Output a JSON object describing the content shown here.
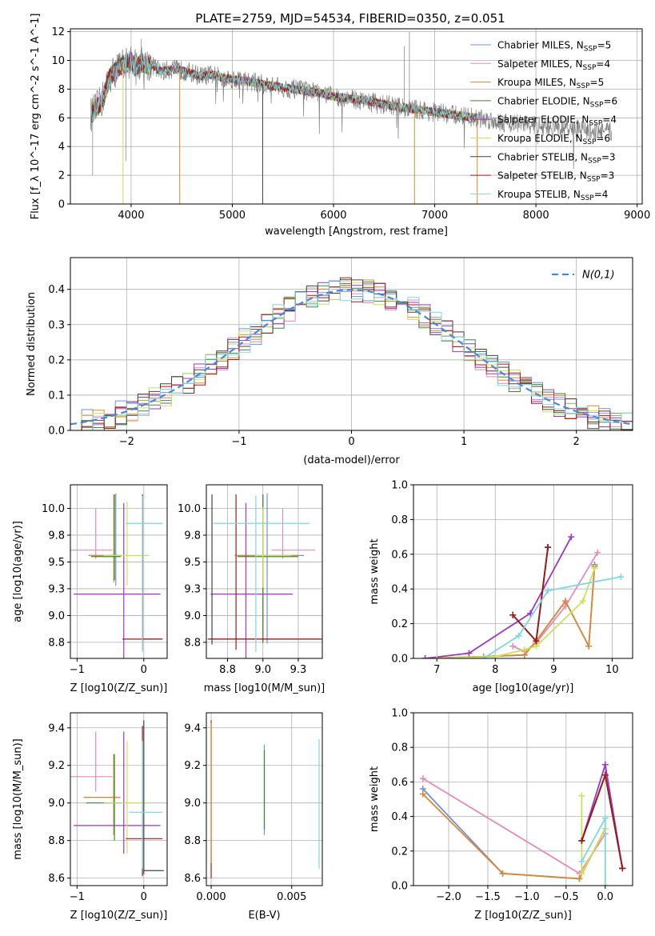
{
  "title": "PLATE=2759, MJD=54534, FIBERID=0350, z=0.051",
  "models": [
    {
      "name": "Chabrier MILES",
      "nssp": "5",
      "color": "#6f8fe0"
    },
    {
      "name": "Salpeter MILES",
      "nssp": "4",
      "color": "#e889b8"
    },
    {
      "name": "Kroupa MILES",
      "nssp": "5",
      "color": "#d98a2e"
    },
    {
      "name": "Chabrier ELODIE",
      "nssp": "6",
      "color": "#3a8a3a"
    },
    {
      "name": "Salpeter ELODIE",
      "nssp": "4",
      "color": "#9b38c0"
    },
    {
      "name": "Kroupa ELODIE",
      "nssp": "6",
      "color": "#c8e25a"
    },
    {
      "name": "Chabrier STELIB",
      "nssp": "3",
      "color": "#444444"
    },
    {
      "name": "Salpeter STELIB",
      "nssp": "3",
      "color": "#a01818"
    },
    {
      "name": "Kroupa STELIB",
      "nssp": "4",
      "color": "#7fd6df"
    }
  ],
  "chart_data": [
    {
      "type": "line",
      "title": "PLATE=2759, MJD=54534, FIBERID=0350, z=0.051",
      "xlabel": "wavelength [Angstrom, rest frame]",
      "ylabel": "Flux [f_λ 10^-17 erg cm^-2 s^-1 A^-1]",
      "xlim": [
        3400,
        9050
      ],
      "ylim": [
        0,
        12.2
      ],
      "xticks": [
        4000,
        5000,
        6000,
        7000,
        8000,
        9000
      ],
      "yticks": [
        0,
        2,
        4,
        6,
        8,
        10,
        12
      ],
      "data_color": "#808080",
      "data_points": [
        [
          3600,
          6.2
        ],
        [
          3700,
          7.0
        ],
        [
          3800,
          9.0
        ],
        [
          3900,
          9.6
        ],
        [
          4000,
          10.0
        ],
        [
          4050,
          9.5
        ],
        [
          4100,
          9.8
        ],
        [
          4200,
          9.7
        ],
        [
          4300,
          9.2
        ],
        [
          4400,
          9.4
        ],
        [
          4500,
          9.3
        ],
        [
          4600,
          9.1
        ],
        [
          4700,
          8.9
        ],
        [
          4800,
          9.0
        ],
        [
          4900,
          8.8
        ],
        [
          5000,
          8.7
        ],
        [
          5200,
          8.5
        ],
        [
          5400,
          8.2
        ],
        [
          5600,
          8.0
        ],
        [
          5800,
          7.8
        ],
        [
          6000,
          7.5
        ],
        [
          6200,
          7.3
        ],
        [
          6400,
          7.1
        ],
        [
          6600,
          6.8
        ],
        [
          6800,
          6.6
        ],
        [
          7000,
          6.4
        ],
        [
          7200,
          6.2
        ],
        [
          7400,
          6.0
        ],
        [
          7600,
          5.8
        ],
        [
          7800,
          5.6
        ],
        [
          8000,
          5.5
        ],
        [
          8200,
          5.3
        ],
        [
          8400,
          5.2
        ],
        [
          8600,
          5.1
        ],
        [
          8750,
          5.0
        ]
      ],
      "model_range": [
        3600,
        7420
      ],
      "dips": [
        [
          3920,
          0.0
        ],
        [
          4480,
          0.0
        ],
        [
          5300,
          0.0
        ],
        [
          6800,
          0.0
        ],
        [
          7420,
          0.0
        ]
      ]
    },
    {
      "type": "step",
      "xlabel": "(data-model)/error",
      "ylabel": "Normed distribution",
      "xlim": [
        -2.5,
        2.5
      ],
      "ylim": [
        0,
        0.49
      ],
      "xticks": [
        -2,
        -1,
        0,
        1,
        2
      ],
      "yticks": [
        0.0,
        0.1,
        0.2,
        0.3,
        0.4
      ],
      "legend": "N(0,1)",
      "reference_color": "#4a86d9",
      "bin_width": 0.1
    },
    {
      "type": "errorbar",
      "xlabel": "Z [log10(Z/Z_sun)]",
      "ylabel": "age [log10(age/yr)]",
      "xlim": [
        -1.1,
        0.35
      ],
      "ylim": [
        8.6,
        10.22
      ],
      "xticks": [
        -1,
        0
      ],
      "yticks": [
        8.75,
        9.0,
        9.25,
        9.5,
        9.75,
        10.0
      ],
      "points": [
        {
          "x": -0.42,
          "y": 9.56,
          "xerr": [
            0.38,
            0.08
          ],
          "yerr": [
            0.28,
            0.58
          ]
        },
        {
          "x": -0.72,
          "y": 9.61,
          "xerr": [
            0.38,
            0.25
          ],
          "yerr": [
            0.08,
            0.39
          ]
        },
        {
          "x": -0.45,
          "y": 9.56,
          "xerr": [
            0.38,
            0.1
          ],
          "yerr": [
            0.25,
            0.57
          ]
        },
        {
          "x": -0.44,
          "y": 9.55,
          "xerr": [
            0.35,
            0.1
          ],
          "yerr": [
            0.22,
            0.58
          ]
        },
        {
          "x": -0.3,
          "y": 9.2,
          "xerr": [
            0.75,
            0.55
          ],
          "yerr": [
            0.6,
            0.85
          ]
        },
        {
          "x": -0.25,
          "y": 9.56,
          "xerr": [
            0.35,
            0.33
          ],
          "yerr": [
            0.28,
            0.5
          ]
        },
        {
          "x": -0.02,
          "y": 8.78,
          "xerr": [
            0.0,
            0.3
          ],
          "yerr": [
            0.0,
            1.35
          ]
        },
        {
          "x": -0.02,
          "y": 8.78,
          "xerr": [
            0.3,
            0.3
          ],
          "yerr": [
            0.1,
            1.35
          ]
        },
        {
          "x": -0.02,
          "y": 9.86,
          "xerr": [
            0.25,
            0.3
          ],
          "yerr": [
            1.2,
            0.26
          ]
        }
      ]
    },
    {
      "type": "errorbar",
      "xlabel": "mass [log10(M/M_sun)]",
      "ylabel": "",
      "xlim": [
        8.6,
        9.42
      ],
      "ylim": [
        8.6,
        10.22
      ],
      "xticks": [
        8.75,
        9.0,
        9.25
      ],
      "yticks": [
        8.75,
        9.0,
        9.25,
        9.5,
        9.75,
        10.0
      ],
      "points": [
        {
          "x": 9.03,
          "y": 9.56,
          "xerr": [
            0.2,
            0.26
          ],
          "yerr": [
            0.82,
            0.58
          ]
        },
        {
          "x": 9.14,
          "y": 9.61,
          "xerr": [
            0.08,
            0.23
          ],
          "yerr": [
            0.08,
            0.39
          ]
        },
        {
          "x": 9.0,
          "y": 9.56,
          "xerr": [
            0.2,
            0.25
          ],
          "yerr": [
            0.82,
            0.57
          ]
        },
        {
          "x": 9.0,
          "y": 9.55,
          "xerr": [
            0.18,
            0.25
          ],
          "yerr": [
            0.8,
            0.58
          ]
        },
        {
          "x": 8.88,
          "y": 9.2,
          "xerr": [
            0.25,
            0.33
          ],
          "yerr": [
            0.6,
            0.85
          ]
        },
        {
          "x": 9.0,
          "y": 9.56,
          "xerr": [
            0.05,
            0.2
          ],
          "yerr": [
            0.3,
            0.45
          ]
        },
        {
          "x": 8.64,
          "y": 8.78,
          "xerr": [
            0.02,
            0.8
          ],
          "yerr": [
            0.05,
            1.35
          ]
        },
        {
          "x": 8.81,
          "y": 8.78,
          "xerr": [
            0.2,
            0.6
          ],
          "yerr": [
            0.1,
            1.35
          ]
        },
        {
          "x": 8.95,
          "y": 9.86,
          "xerr": [
            0.3,
            0.38
          ],
          "yerr": [
            1.2,
            0.26
          ]
        }
      ]
    },
    {
      "type": "line",
      "xlabel": "age [log10(age/yr)]",
      "ylabel": "mass weight",
      "xlim": [
        6.6,
        10.35
      ],
      "ylim": [
        0,
        1.0
      ],
      "xticks": [
        7,
        8,
        9,
        10
      ],
      "yticks": [
        0.0,
        0.2,
        0.4,
        0.6,
        0.8,
        1.0
      ],
      "series": [
        {
          "model": 0,
          "x": [
            6.8,
            7.8,
            8.5,
            8.7,
            9.2,
            9.6,
            9.7
          ],
          "y": [
            0.0,
            0.01,
            0.02,
            0.1,
            0.33,
            0.07,
            0.54
          ]
        },
        {
          "model": 1,
          "x": [
            8.3,
            8.5,
            8.7,
            9.2,
            9.75
          ],
          "y": [
            0.07,
            0.04,
            0.09,
            0.3,
            0.61
          ]
        },
        {
          "model": 2,
          "x": [
            6.8,
            7.8,
            8.5,
            8.7,
            9.2,
            9.6,
            9.7
          ],
          "y": [
            0.0,
            0.01,
            0.02,
            0.1,
            0.33,
            0.07,
            0.53
          ]
        },
        {
          "model": 3,
          "x": [
            8.3,
            8.7,
            8.9
          ],
          "y": [
            0.25,
            0.1,
            0.64
          ]
        },
        {
          "model": 4,
          "x": [
            6.8,
            7.55,
            8.6,
            9.3
          ],
          "y": [
            0.0,
            0.03,
            0.26,
            0.7
          ]
        },
        {
          "model": 5,
          "x": [
            7.0,
            8.0,
            8.5,
            8.7,
            9.5,
            9.7
          ],
          "y": [
            0.0,
            0.01,
            0.05,
            0.07,
            0.33,
            0.52
          ]
        },
        {
          "model": 6,
          "x": [
            8.3,
            8.7,
            8.9
          ],
          "y": [
            0.25,
            0.1,
            0.64
          ]
        },
        {
          "model": 7,
          "x": [
            8.3,
            8.7,
            8.9
          ],
          "y": [
            0.25,
            0.1,
            0.64
          ]
        },
        {
          "model": 8,
          "x": [
            7.8,
            8.4,
            8.9,
            10.15
          ],
          "y": [
            0.0,
            0.13,
            0.39,
            0.47
          ]
        }
      ]
    },
    {
      "type": "errorbar",
      "xlabel": "Z [log10(Z/Z_sun)]",
      "ylabel": "mass [log10(M/M_sun)]",
      "xlim": [
        -1.1,
        0.35
      ],
      "ylim": [
        8.56,
        9.48
      ],
      "xticks": [
        -1,
        0
      ],
      "yticks": [
        8.6,
        8.8,
        9.0,
        9.2,
        9.4
      ],
      "points": [
        {
          "x": -0.45,
          "y": 9.03,
          "xerr": [
            0.45,
            0.1
          ],
          "yerr": [
            0.2,
            0.23
          ]
        },
        {
          "x": -0.72,
          "y": 9.14,
          "xerr": [
            0.38,
            0.25
          ],
          "yerr": [
            0.08,
            0.24
          ]
        },
        {
          "x": -0.45,
          "y": 9.03,
          "xerr": [
            0.45,
            0.1
          ],
          "yerr": [
            0.2,
            0.23
          ]
        },
        {
          "x": -0.44,
          "y": 9.0,
          "xerr": [
            0.42,
            0.1
          ],
          "yerr": [
            0.2,
            0.26
          ]
        },
        {
          "x": -0.3,
          "y": 8.88,
          "xerr": [
            0.75,
            0.55
          ],
          "yerr": [
            0.15,
            0.5
          ]
        },
        {
          "x": -0.25,
          "y": 9.0,
          "xerr": [
            0.35,
            0.33
          ],
          "yerr": [
            0.27,
            0.33
          ]
        },
        {
          "x": 0.0,
          "y": 8.64,
          "xerr": [
            0.0,
            0.3
          ],
          "yerr": [
            0.02,
            0.8
          ]
        },
        {
          "x": -0.02,
          "y": 8.81,
          "xerr": [
            0.25,
            0.3
          ],
          "yerr": [
            0.2,
            0.6
          ]
        },
        {
          "x": -0.02,
          "y": 8.95,
          "xerr": [
            0.2,
            0.3
          ],
          "yerr": [
            0.3,
            0.38
          ]
        }
      ]
    },
    {
      "type": "errorbar",
      "xlabel": "E(B-V)",
      "ylabel": "",
      "xlim": [
        -0.0003,
        0.0069
      ],
      "ylim": [
        8.56,
        9.48
      ],
      "xticks": [
        0.0,
        0.005
      ],
      "xticklabels": [
        "0.000",
        "0.005"
      ],
      "yticks": [
        8.6,
        8.8,
        9.0,
        9.2,
        9.4
      ],
      "points": [
        {
          "x": 0.0,
          "y": 9.0,
          "xerr": [
            0,
            0
          ],
          "yerr": [
            0.4,
            0.44
          ]
        },
        {
          "x": 0.0,
          "y": 9.03,
          "xerr": [
            0,
            0
          ],
          "yerr": [
            0.35,
            0.4
          ]
        },
        {
          "x": 0.0033,
          "y": 9.08,
          "xerr": [
            0,
            0
          ],
          "yerr": [
            0.25,
            0.23
          ]
        },
        {
          "x": 0.0033,
          "y": 9.08,
          "xerr": [
            0,
            0
          ],
          "yerr": [
            0.22,
            0.2
          ]
        },
        {
          "x": 0.0067,
          "y": 9.0,
          "xerr": [
            0,
            0
          ],
          "yerr": [
            0.35,
            0.34
          ]
        }
      ]
    },
    {
      "type": "line",
      "xlabel": "Z [log10(Z/Z_sun)]",
      "ylabel": "mass weight",
      "xlim": [
        -2.45,
        0.35
      ],
      "ylim": [
        0,
        1.0
      ],
      "xticks": [
        -2.0,
        -1.5,
        -1.0,
        -0.5,
        0.0
      ],
      "yticks": [
        0.0,
        0.2,
        0.4,
        0.6,
        0.8,
        1.0
      ],
      "series": [
        {
          "model": 0,
          "x": [
            -2.33,
            -1.31,
            -0.33,
            0.0
          ],
          "y": [
            0.56,
            0.07,
            0.04,
            0.33
          ]
        },
        {
          "model": 1,
          "x": [
            -2.33,
            -0.33,
            0.0
          ],
          "y": [
            0.62,
            0.07,
            0.3
          ]
        },
        {
          "model": 2,
          "x": [
            -2.33,
            -1.31,
            -0.33,
            0.0
          ],
          "y": [
            0.53,
            0.07,
            0.04,
            0.33
          ]
        },
        {
          "model": 3,
          "x": [
            -0.3,
            0.0,
            0.22
          ],
          "y": [
            0.26,
            0.64,
            0.1
          ]
        },
        {
          "model": 4,
          "x": [
            -0.3,
            0.0,
            0.22
          ],
          "y": [
            0.26,
            0.7,
            0.1
          ]
        },
        {
          "model": 5,
          "x": [
            -0.3,
            -0.3,
            0.0
          ],
          "y": [
            0.52,
            0.07,
            0.33
          ]
        },
        {
          "model": 6,
          "x": [
            -0.3,
            0.0,
            0.22
          ],
          "y": [
            0.26,
            0.64,
            0.1
          ]
        },
        {
          "model": 7,
          "x": [
            -0.3,
            0.0,
            0.22
          ],
          "y": [
            0.26,
            0.64,
            0.1
          ]
        },
        {
          "model": 8,
          "x": [
            -0.3,
            0.0,
            0.0
          ],
          "y": [
            0.14,
            0.39,
            0.0
          ]
        }
      ]
    }
  ]
}
